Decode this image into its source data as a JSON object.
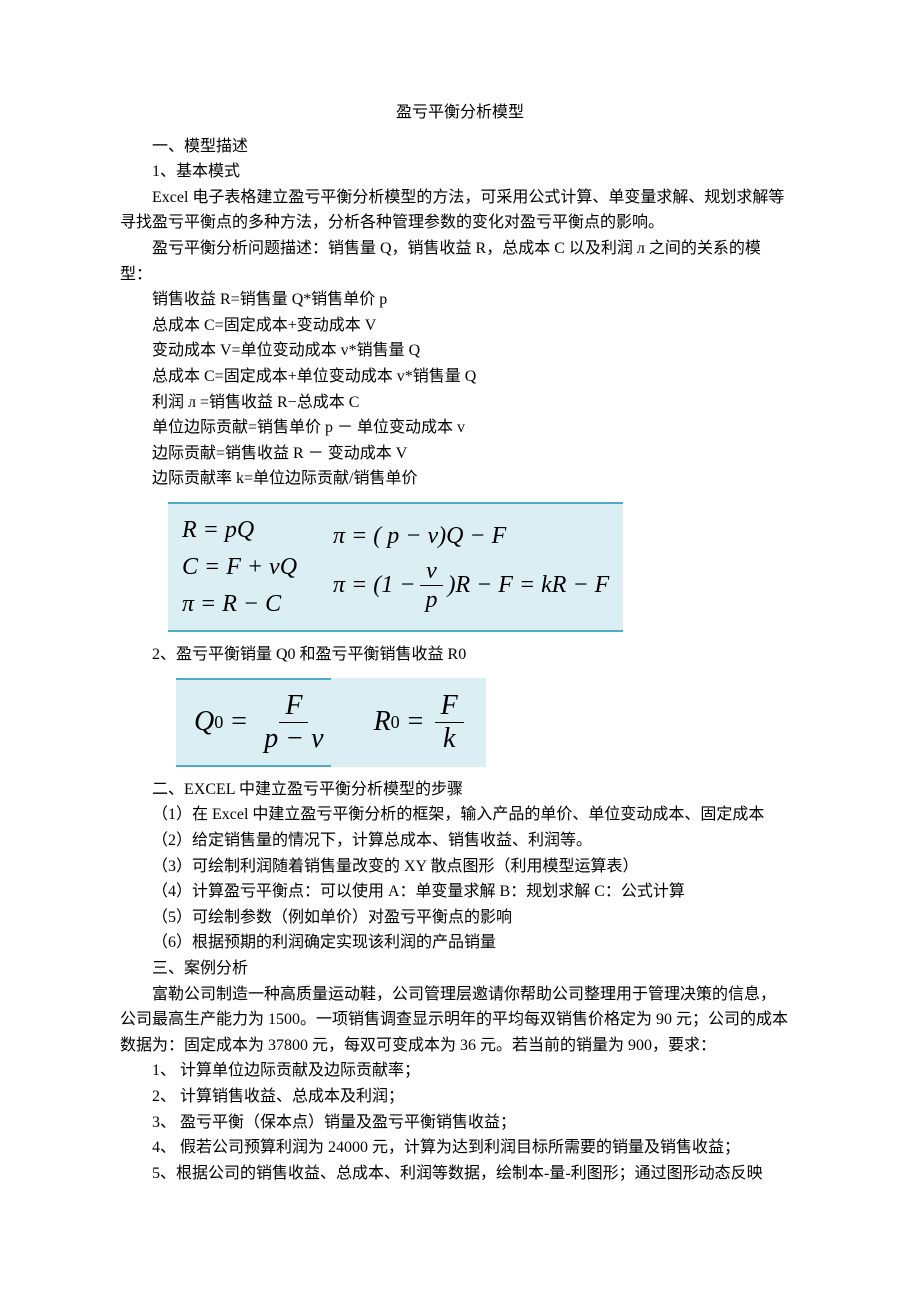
{
  "title": "盈亏平衡分析模型",
  "section1_h": "一、模型描述",
  "s1_sub1": "1、基本模式",
  "s1_p1": "Excel 电子表格建立盈亏平衡分析模型的方法，可采用公式计算、单变量求解、规划求解等寻找盈亏平衡点的多种方法，分析各种管理参数的变化对盈亏平衡点的影响。",
  "s1_p2a": "盈亏平衡分析问题描述：销售量 Q，销售收益 R，总成本 C 以及利润 л 之间的关系的模",
  "s1_p2b": "型：",
  "eqlist": [
    "销售收益 R=销售量 Q*销售单价 p",
    "总成本 C=固定成本+变动成本 V",
    "变动成本 V=单位变动成本 v*销售量 Q",
    "总成本 C=固定成本+单位变动成本 v*销售量 Q",
    "利润 л =销售收益 R−总成本 C",
    "单位边际贡献=销售单价 p － 单位变动成本 v",
    "边际贡献=销售收益 R － 变动成本 V",
    "边际贡献率 k=单位边际贡献/销售单价"
  ],
  "formula1": {
    "bg": "#daeef3",
    "border": "#4bacc6",
    "left": {
      "l1": "R = pQ",
      "l2": "C = F + vQ",
      "l3": "π = R − C"
    },
    "right": {
      "l1": "π = ( p − v)Q − F",
      "l2_pre": "π = (1 − ",
      "l2_num": "v",
      "l2_den": "p",
      "l2_post": ")R − F = kR − F"
    }
  },
  "s1_sub2": "2、盈亏平衡销量 Q0 和盈亏平衡销售收益 R0",
  "formula2": {
    "bg": "#daeef3",
    "q_sym": "Q",
    "q_sub": "0",
    "q_num": "F",
    "q_den": "p − v",
    "r_sym": "R",
    "r_sub": "0",
    "r_num": "F",
    "r_den": "k"
  },
  "section2_h": "二、EXCEL 中建立盈亏平衡分析模型的步骤",
  "steps": [
    "（1）在 Excel 中建立盈亏平衡分析的框架，输入产品的单价、单位变动成本、固定成本",
    "（2）给定销售量的情况下，计算总成本、销售收益、利润等。",
    "（3）可绘制利润随着销售量改变的 XY 散点图形（利用模型运算表）",
    "（4）计算盈亏平衡点：可以使用 A：单变量求解   B：规划求解   C：公式计算",
    "（5）可绘制参数（例如单价）对盈亏平衡点的影响",
    "（6）根据预期的利润确定实现该利润的产品销量"
  ],
  "section3_h": "三、案例分析",
  "case_p1": "富勒公司制造一种高质量运动鞋，公司管理层邀请你帮助公司整理用于管理决策的信息，",
  "case_p2": "公司最高生产能力为 1500。一项销售调查显示明年的平均每双销售价格定为 90 元；公司的成本数据为：固定成本为 37800 元，每双可变成本为 36 元。若当前的销量为 900，要求：",
  "case_items": [
    "1、  计算单位边际贡献及边际贡献率；",
    "2、  计算销售收益、总成本及利润；",
    "3、  盈亏平衡（保本点）销量及盈亏平衡销售收益；",
    "4、  假若公司预算利润为 24000 元，计算为达到利润目标所需要的销量及销售收益；",
    "5、根据公司的销售收益、总成本、利润等数据，绘制本-量-利图形；通过图形动态反映"
  ]
}
